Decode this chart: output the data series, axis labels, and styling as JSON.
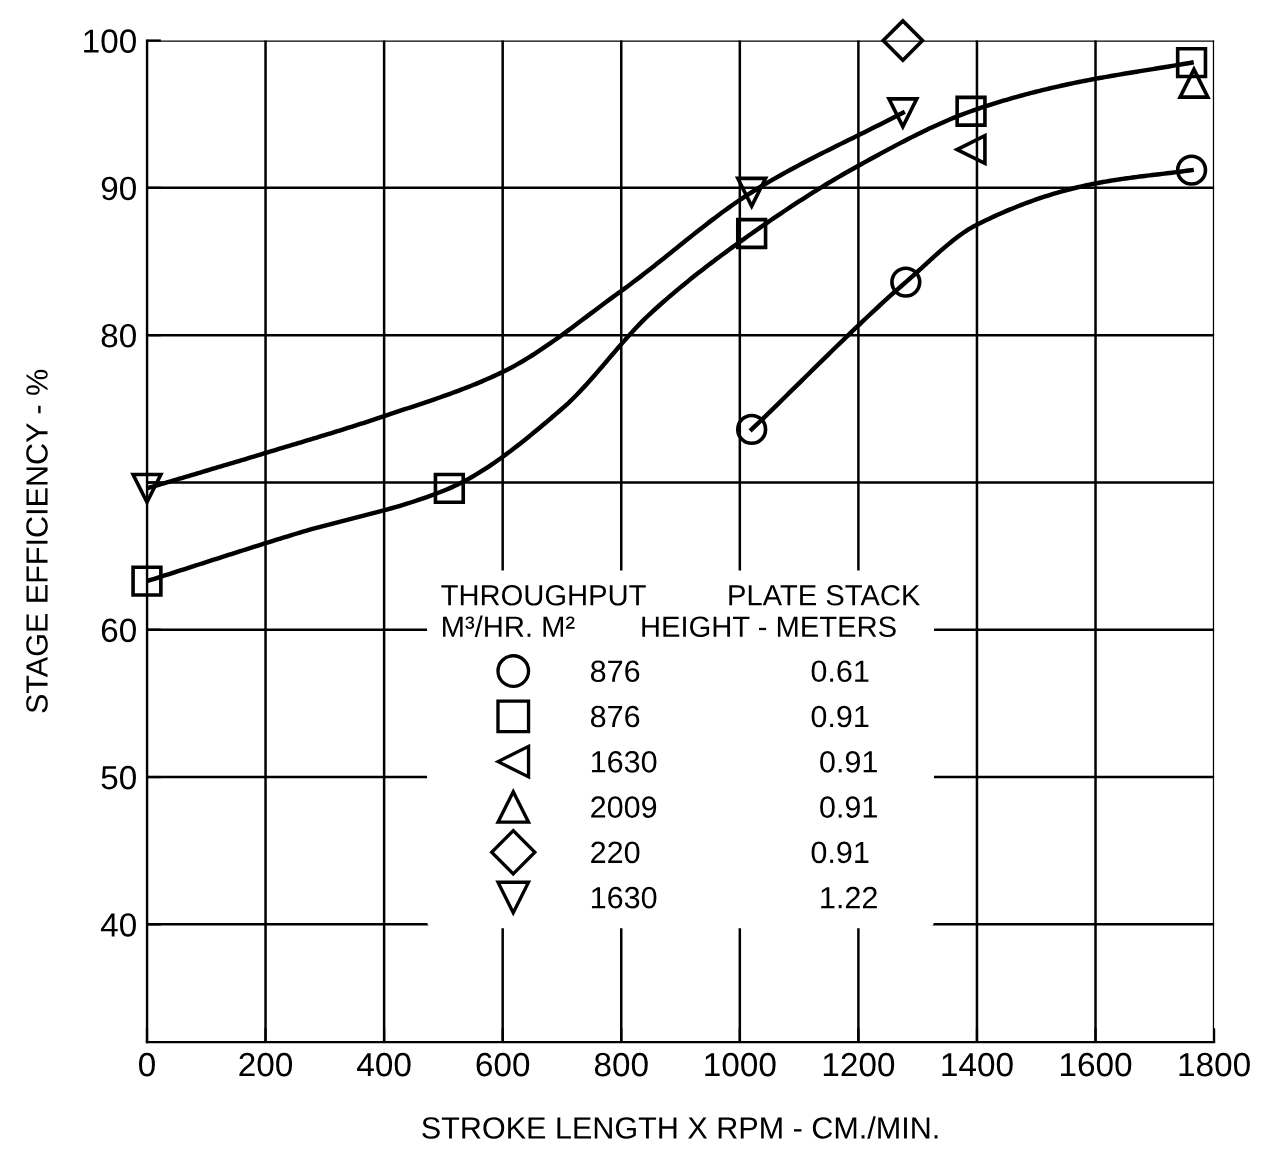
{
  "chart_data": {
    "type": "scatter",
    "xlabel": "STROKE LENGTH X RPM - CM./MIN.",
    "ylabel": "STAGE EFFICIENCY - %",
    "legend_title": "THROUGHPUT          PLATE STACK\nM³/HR. M²        HEIGHT - METERS",
    "xlim": [
      0,
      1800
    ],
    "xticks": [
      0,
      200,
      400,
      600,
      800,
      1000,
      1200,
      1400,
      1600,
      1800
    ],
    "ylim": [
      32,
      100
    ],
    "yticks": [
      40,
      50,
      60,
      {
        "value": 70,
        "label": null
      },
      80,
      90,
      100
    ],
    "grid": true,
    "legend": "bottom",
    "series": [
      {
        "name": "876                    0.61",
        "color": "#000000",
        "marker": "circle",
        "x": [
          1020,
          1280,
          1762
        ],
        "values": [
          73.6,
          83.6,
          91.2
        ]
      },
      {
        "name": "876                    0.91",
        "color": "#000000",
        "marker": "square",
        "x": [
          0,
          510,
          1020,
          1390,
          1762
        ],
        "values": [
          63.3,
          69.6,
          86.9,
          95.2,
          98.5
        ]
      },
      {
        "name": "1630                   0.91",
        "color": "#000000",
        "marker": "triangle_left",
        "x": [
          1390
        ],
        "values": [
          92.6
        ]
      },
      {
        "name": "2009                   0.91",
        "color": "#000000",
        "marker": "triangle",
        "x": [
          1766
        ],
        "values": [
          97.1
        ]
      },
      {
        "name": "220                    0.91",
        "color": "#000000",
        "marker": "diamond",
        "x": [
          1275
        ],
        "values": [
          100
        ]
      },
      {
        "name": "1630                   1.22",
        "color": "#000000",
        "marker": "triangle_down",
        "x": [
          0,
          1020,
          1275
        ],
        "values": [
          69.6,
          89.7,
          95.1
        ]
      },
      {
        "type": "line",
        "color": "#000000",
        "marker": "none",
        "x": [
          1020,
          1280,
          1400,
          1600,
          1762
        ],
        "values": [
          73.6,
          83.6,
          87.5,
          90.3,
          91.2
        ]
      },
      {
        "type": "line",
        "color": "#000000",
        "marker": "none",
        "x": [
          0,
          250,
          510,
          700,
          850,
          1020,
          1200,
          1390,
          1550,
          1762
        ],
        "values": [
          63.3,
          66.5,
          69.6,
          75,
          81.5,
          86.9,
          91.5,
          95.2,
          97,
          98.5
        ]
      },
      {
        "type": "line",
        "color": "#000000",
        "marker": "none",
        "x": [
          0,
          200,
          400,
          600,
          800,
          1020,
          1275
        ],
        "values": [
          69.6,
          72,
          74.5,
          77.5,
          83,
          89.7,
          95.1
        ]
      }
    ]
  }
}
